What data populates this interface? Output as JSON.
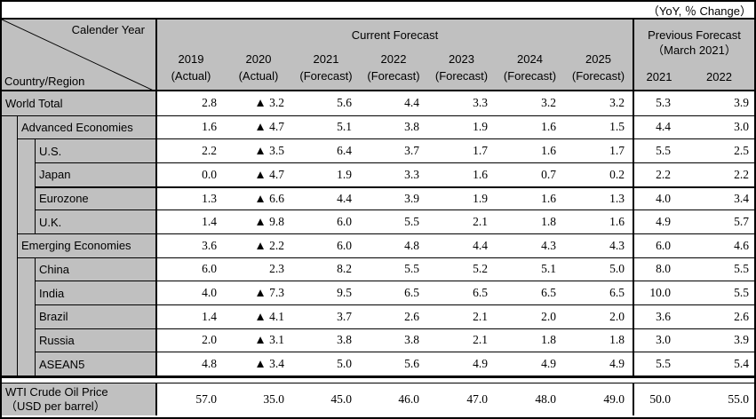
{
  "note": "（YoY, ％ Change）",
  "header": {
    "corner": {
      "top_label": "Calender Year",
      "bottom_label": "Country/Region"
    },
    "current_forecast": {
      "label": "Current Forecast",
      "columns": [
        {
          "year": "2019",
          "kind": "(Actual)"
        },
        {
          "year": "2020",
          "kind": "(Actual)"
        },
        {
          "year": "2021",
          "kind": "(Forecast)"
        },
        {
          "year": "2022",
          "kind": "(Forecast)"
        },
        {
          "year": "2023",
          "kind": "(Forecast)"
        },
        {
          "year": "2024",
          "kind": "(Forecast)"
        },
        {
          "year": "2025",
          "kind": "(Forecast)"
        }
      ]
    },
    "previous_forecast": {
      "label": "Previous Forecast",
      "sublabel": "（March 2021）",
      "columns": [
        "2021",
        "2022"
      ]
    }
  },
  "rows": [
    {
      "label": "World Total",
      "indent": 0,
      "thick_top": false,
      "values": [
        "2.8",
        "▲ 3.2",
        "5.6",
        "4.4",
        "3.3",
        "3.2",
        "3.2",
        "5.3",
        "3.9"
      ]
    },
    {
      "label": "Advanced Economies",
      "indent": 1,
      "thick_top": false,
      "values": [
        "1.6",
        "▲ 4.7",
        "5.1",
        "3.8",
        "1.9",
        "1.6",
        "1.5",
        "4.4",
        "3.0"
      ]
    },
    {
      "label": "U.S.",
      "indent": 2,
      "thick_top": false,
      "values": [
        "2.2",
        "▲ 3.5",
        "6.4",
        "3.7",
        "1.7",
        "1.6",
        "1.7",
        "5.5",
        "2.5"
      ]
    },
    {
      "label": "Japan",
      "indent": 2,
      "thick_top": false,
      "values": [
        "0.0",
        "▲ 4.7",
        "1.9",
        "3.3",
        "1.6",
        "0.7",
        "0.2",
        "2.2",
        "2.2"
      ]
    },
    {
      "label": "Eurozone",
      "indent": 2,
      "thick_top": true,
      "values": [
        "1.3",
        "▲ 6.6",
        "4.4",
        "3.9",
        "1.9",
        "1.6",
        "1.3",
        "4.0",
        "3.4"
      ]
    },
    {
      "label": "U.K.",
      "indent": 2,
      "thick_top": false,
      "values": [
        "1.4",
        "▲ 9.8",
        "6.0",
        "5.5",
        "2.1",
        "1.8",
        "1.6",
        "4.9",
        "5.7"
      ]
    },
    {
      "label": "Emerging Economies",
      "indent": 1,
      "thick_top": false,
      "values": [
        "3.6",
        "▲ 2.2",
        "6.0",
        "4.8",
        "4.4",
        "4.3",
        "4.3",
        "6.0",
        "4.6"
      ]
    },
    {
      "label": "China",
      "indent": 2,
      "thick_top": false,
      "values": [
        "6.0",
        "2.3",
        "8.2",
        "5.5",
        "5.2",
        "5.1",
        "5.0",
        "8.0",
        "5.5"
      ]
    },
    {
      "label": "India",
      "indent": 2,
      "thick_top": false,
      "values": [
        "4.0",
        "▲ 7.3",
        "9.5",
        "6.5",
        "6.5",
        "6.5",
        "6.5",
        "10.0",
        "5.5"
      ]
    },
    {
      "label": "Brazil",
      "indent": 2,
      "thick_top": false,
      "values": [
        "1.4",
        "▲ 4.1",
        "3.7",
        "2.6",
        "2.1",
        "2.0",
        "2.0",
        "3.6",
        "2.6"
      ]
    },
    {
      "label": "Russia",
      "indent": 2,
      "thick_top": false,
      "values": [
        "2.0",
        "▲ 3.1",
        "3.8",
        "3.8",
        "2.1",
        "1.8",
        "1.8",
        "3.0",
        "3.9"
      ]
    },
    {
      "label": "ASEAN5",
      "indent": 2,
      "thick_top": false,
      "values": [
        "4.8",
        "▲ 3.4",
        "5.0",
        "5.6",
        "4.9",
        "4.9",
        "4.9",
        "5.5",
        "5.4"
      ]
    }
  ],
  "footer": {
    "label_line1": "WTI Crude Oil Price",
    "label_line2": "（USD per barrel）",
    "values": [
      "57.0",
      "35.0",
      "45.0",
      "46.0",
      "47.0",
      "48.0",
      "49.0",
      "50.0",
      "55.0"
    ]
  },
  "colors": {
    "header_bg": "#c0c0c0",
    "cell_bg": "#ffffff",
    "border": "#000000",
    "text": "#000000"
  },
  "chart_data": {
    "type": "table",
    "title": "GDP Growth Forecast by Country/Region",
    "unit": "YoY, % Change",
    "negative_marker": "▲",
    "column_groups": [
      "Current Forecast",
      "Previous Forecast (March 2021)"
    ],
    "columns": [
      "2019 (Actual)",
      "2020 (Actual)",
      "2021 (Forecast)",
      "2022 (Forecast)",
      "2023 (Forecast)",
      "2024 (Forecast)",
      "2025 (Forecast)",
      "Prev 2021",
      "Prev 2022"
    ],
    "rows": [
      {
        "region": "World Total",
        "values": [
          2.8,
          -3.2,
          5.6,
          4.4,
          3.3,
          3.2,
          3.2,
          5.3,
          3.9
        ]
      },
      {
        "region": "Advanced Economies",
        "values": [
          1.6,
          -4.7,
          5.1,
          3.8,
          1.9,
          1.6,
          1.5,
          4.4,
          3.0
        ]
      },
      {
        "region": "U.S.",
        "values": [
          2.2,
          -3.5,
          6.4,
          3.7,
          1.7,
          1.6,
          1.7,
          5.5,
          2.5
        ]
      },
      {
        "region": "Japan",
        "values": [
          0.0,
          -4.7,
          1.9,
          3.3,
          1.6,
          0.7,
          0.2,
          2.2,
          2.2
        ]
      },
      {
        "region": "Eurozone",
        "values": [
          1.3,
          -6.6,
          4.4,
          3.9,
          1.9,
          1.6,
          1.3,
          4.0,
          3.4
        ]
      },
      {
        "region": "U.K.",
        "values": [
          1.4,
          -9.8,
          6.0,
          5.5,
          2.1,
          1.8,
          1.6,
          4.9,
          5.7
        ]
      },
      {
        "region": "Emerging Economies",
        "values": [
          3.6,
          -2.2,
          6.0,
          4.8,
          4.4,
          4.3,
          4.3,
          6.0,
          4.6
        ]
      },
      {
        "region": "China",
        "values": [
          6.0,
          2.3,
          8.2,
          5.5,
          5.2,
          5.1,
          5.0,
          8.0,
          5.5
        ]
      },
      {
        "region": "India",
        "values": [
          4.0,
          -7.3,
          9.5,
          6.5,
          6.5,
          6.5,
          6.5,
          10.0,
          5.5
        ]
      },
      {
        "region": "Brazil",
        "values": [
          1.4,
          -4.1,
          3.7,
          2.6,
          2.1,
          2.0,
          2.0,
          3.6,
          2.6
        ]
      },
      {
        "region": "Russia",
        "values": [
          2.0,
          -3.1,
          3.8,
          3.8,
          2.1,
          1.8,
          1.8,
          3.0,
          3.9
        ]
      },
      {
        "region": "ASEAN5",
        "values": [
          4.8,
          -3.4,
          5.0,
          5.6,
          4.9,
          4.9,
          4.9,
          5.5,
          5.4
        ]
      },
      {
        "region": "WTI Crude Oil Price (USD per barrel)",
        "values": [
          57.0,
          35.0,
          45.0,
          46.0,
          47.0,
          48.0,
          49.0,
          50.0,
          55.0
        ]
      }
    ]
  }
}
